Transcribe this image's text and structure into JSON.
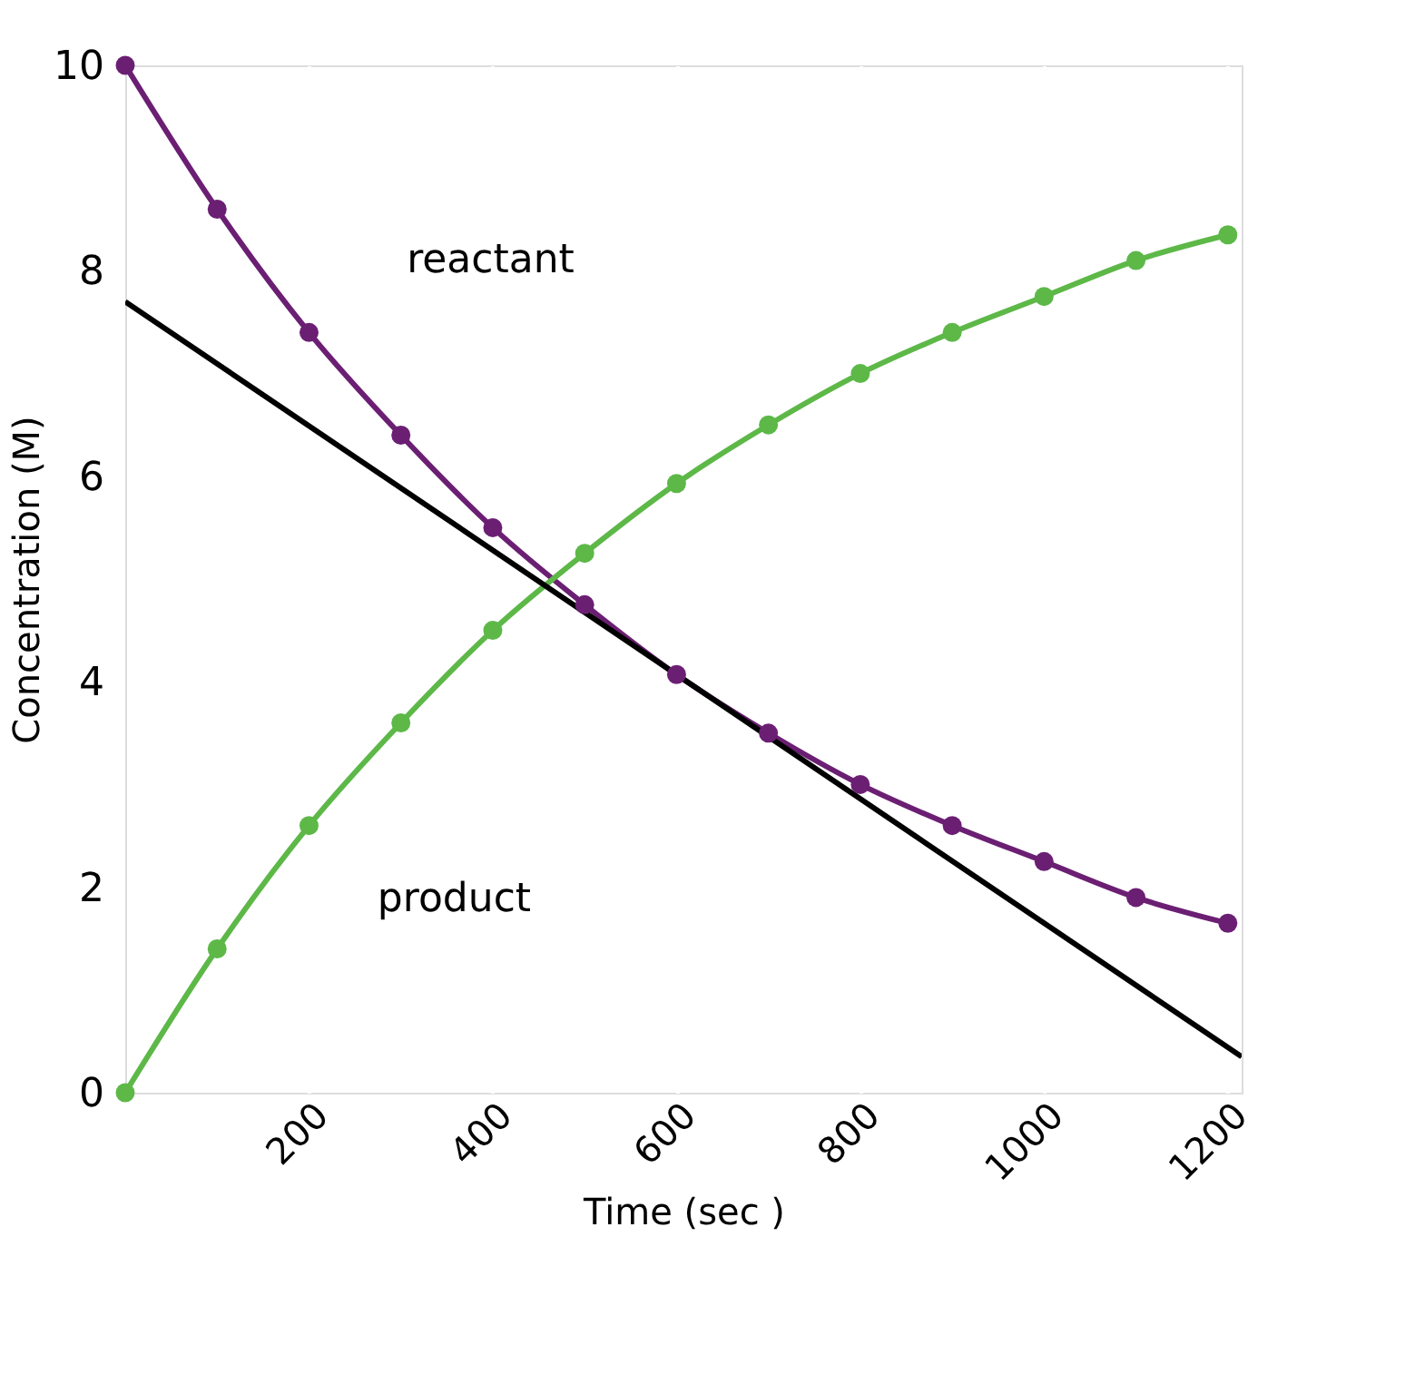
{
  "chart_data": {
    "type": "line",
    "xlabel": "Time (sec )",
    "ylabel": "Concentration (M)",
    "x": [
      0,
      100,
      200,
      300,
      400,
      500,
      600,
      700,
      800,
      900,
      1000,
      1100,
      1200
    ],
    "series": [
      {
        "name": "reactant",
        "color": "#6b1f73",
        "values": [
          10,
          8.6,
          7.4,
          6.4,
          5.5,
          4.75,
          4.07,
          3.5,
          3.0,
          2.6,
          2.25,
          1.9,
          1.65
        ]
      },
      {
        "name": "product",
        "color": "#5db848",
        "values": [
          0,
          1.4,
          2.6,
          3.6,
          4.5,
          5.25,
          5.93,
          6.5,
          7.0,
          7.4,
          7.75,
          8.1,
          8.35
        ]
      },
      {
        "color": "#000000",
        "x": [
          0,
          1215
        ],
        "values": [
          7.7,
          0.35
        ],
        "marker": "none"
      }
    ],
    "xlim": [
      0,
      1215
    ],
    "ylim": [
      0,
      10
    ],
    "xticks": [
      200,
      400,
      600,
      800,
      1000,
      1200
    ],
    "yticks": [
      0,
      2,
      4,
      6,
      8,
      10
    ],
    "grid": "x",
    "marker": "circle",
    "legend": false
  }
}
